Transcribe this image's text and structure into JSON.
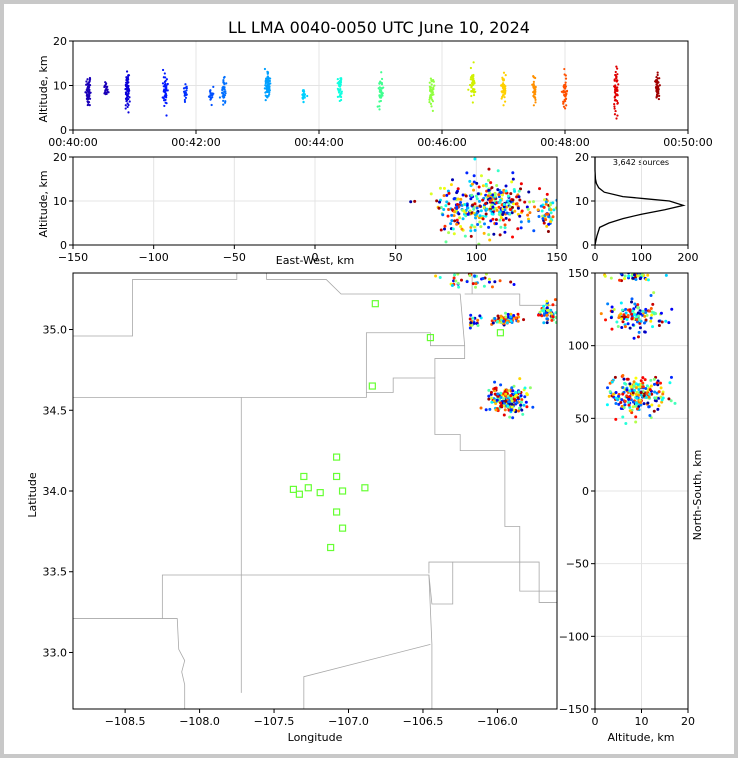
{
  "chart_data": [
    {
      "type": "scatter",
      "panel": "time-altitude",
      "title": "LL LMA 0040-0050 UTC June 10, 2024",
      "xlabel": "",
      "ylabel": "Altitude, km",
      "xlim": [
        "00:40:00",
        "00:50:00"
      ],
      "ylim": [
        0,
        20
      ],
      "xticks": [
        "00:40:00",
        "00:42:00",
        "00:44:00",
        "00:46:00",
        "00:48:00",
        "00:50:00"
      ],
      "yticks": [
        "0",
        "10",
        "20"
      ],
      "clusters": [
        {
          "t": "00:40:15",
          "alt": 9,
          "spread": 3,
          "n": 60,
          "color": "#1b00b8"
        },
        {
          "t": "00:40:32",
          "alt": 9,
          "spread": 1.5,
          "n": 20,
          "color": "#1b00b8"
        },
        {
          "t": "00:40:53",
          "alt": 9,
          "spread": 4,
          "n": 70,
          "color": "#0a00d8"
        },
        {
          "t": "00:41:30",
          "alt": 9,
          "spread": 3,
          "n": 55,
          "color": "#0018ff"
        },
        {
          "t": "00:41:50",
          "alt": 8,
          "spread": 1.5,
          "n": 20,
          "color": "#0030ff"
        },
        {
          "t": "00:42:15",
          "alt": 8,
          "spread": 1.5,
          "n": 20,
          "color": "#0050ff"
        },
        {
          "t": "00:42:27",
          "alt": 9,
          "spread": 3,
          "n": 35,
          "color": "#0070ff"
        },
        {
          "t": "00:43:10",
          "alt": 10,
          "spread": 3,
          "n": 70,
          "color": "#00a0ff"
        },
        {
          "t": "00:43:45",
          "alt": 8,
          "spread": 1.5,
          "n": 25,
          "color": "#00d0ff"
        },
        {
          "t": "00:44:20",
          "alt": 9,
          "spread": 3,
          "n": 40,
          "color": "#10ffe0"
        },
        {
          "t": "00:45:00",
          "alt": 9,
          "spread": 3,
          "n": 45,
          "color": "#40ff90"
        },
        {
          "t": "00:45:50",
          "alt": 9,
          "spread": 3,
          "n": 45,
          "color": "#90ff40"
        },
        {
          "t": "00:46:30",
          "alt": 10,
          "spread": 3,
          "n": 45,
          "color": "#d0f000"
        },
        {
          "t": "00:47:00",
          "alt": 9,
          "spread": 3,
          "n": 45,
          "color": "#ffd000"
        },
        {
          "t": "00:47:30",
          "alt": 9,
          "spread": 3,
          "n": 40,
          "color": "#ff9000"
        },
        {
          "t": "00:48:00",
          "alt": 9,
          "spread": 4,
          "n": 45,
          "color": "#ff5000"
        },
        {
          "t": "00:48:50",
          "alt": 9,
          "spread": 4,
          "n": 55,
          "color": "#e00000"
        },
        {
          "t": "00:49:30",
          "alt": 9,
          "spread": 3,
          "n": 45,
          "color": "#a00000"
        }
      ]
    },
    {
      "type": "scatter",
      "panel": "east-west-altitude",
      "xlabel": "East-West, km",
      "ylabel": "Altitude, km",
      "xlim": [
        -150,
        150
      ],
      "ylim": [
        0,
        20
      ],
      "xticks": [
        "−150",
        "−100",
        "−50",
        "0",
        "50",
        "100",
        "150"
      ],
      "yticks": [
        "0",
        "10",
        "20"
      ],
      "clusters": [
        {
          "x": 90,
          "alt": 8,
          "sx": 8,
          "sa": 3,
          "n": 120
        },
        {
          "x": 113,
          "alt": 9,
          "sx": 9,
          "sa": 3,
          "n": 220
        },
        {
          "x": 145,
          "alt": 8,
          "sx": 5,
          "sa": 2,
          "n": 60
        },
        {
          "x": 60,
          "alt": 10,
          "sx": 1,
          "sa": 0.3,
          "n": 2
        }
      ]
    },
    {
      "type": "line",
      "panel": "altitude-histogram",
      "annotation": "3,642 sources",
      "xlim": [
        0,
        200
      ],
      "ylim": [
        0,
        20
      ],
      "xticks": [
        "0",
        "100",
        "200"
      ],
      "yticks": [
        "0",
        "10",
        "20"
      ],
      "profile": [
        [
          0,
          0
        ],
        [
          4,
          2
        ],
        [
          10,
          4
        ],
        [
          30,
          5
        ],
        [
          60,
          6
        ],
        [
          100,
          7
        ],
        [
          150,
          8
        ],
        [
          190,
          9
        ],
        [
          160,
          10
        ],
        [
          110,
          10.5
        ],
        [
          60,
          11
        ],
        [
          20,
          12
        ],
        [
          8,
          13
        ],
        [
          3,
          14
        ],
        [
          1,
          15
        ],
        [
          0,
          17
        ],
        [
          0,
          20
        ]
      ]
    },
    {
      "type": "scatter",
      "panel": "plan-view",
      "xlabel": "Longitude",
      "ylabel": "Latitude",
      "xlim": [
        -108.85,
        -105.6
      ],
      "ylim": [
        32.65,
        35.35
      ],
      "xticks": [
        "−108.5",
        "−108.0",
        "−107.5",
        "−107.0",
        "−106.5",
        "−106.0"
      ],
      "yticks": [
        "33.0",
        "33.5",
        "34.0",
        "34.5",
        "35.0"
      ],
      "stations": [
        [
          -106.82,
          35.16
        ],
        [
          -106.45,
          34.95
        ],
        [
          -105.98,
          34.98
        ],
        [
          -106.84,
          34.65
        ],
        [
          -107.08,
          34.21
        ],
        [
          -107.3,
          34.09
        ],
        [
          -107.08,
          34.09
        ],
        [
          -107.27,
          34.02
        ],
        [
          -107.37,
          34.01
        ],
        [
          -107.33,
          33.98
        ],
        [
          -107.19,
          33.99
        ],
        [
          -107.04,
          34.0
        ],
        [
          -106.89,
          34.02
        ],
        [
          -107.08,
          33.87
        ],
        [
          -107.04,
          33.77
        ],
        [
          -107.12,
          33.65
        ]
      ],
      "clusters": [
        {
          "lon": -105.93,
          "lat": 34.56,
          "slon": 0.06,
          "slat": 0.04,
          "n": 200
        },
        {
          "lon": -105.95,
          "lat": 35.06,
          "slon": 0.04,
          "slat": 0.02,
          "n": 80
        },
        {
          "lon": -106.15,
          "lat": 35.05,
          "slon": 0.02,
          "slat": 0.02,
          "n": 20
        },
        {
          "lon": -105.65,
          "lat": 35.1,
          "slon": 0.04,
          "slat": 0.03,
          "n": 60
        },
        {
          "lon": -106.15,
          "lat": 35.3,
          "slon": 0.1,
          "slat": 0.03,
          "n": 40
        }
      ]
    },
    {
      "type": "scatter",
      "panel": "altitude-north-south",
      "xlabel": "Altitude, km",
      "ylabel": "North-South, km",
      "xlim": [
        0,
        20
      ],
      "ylim": [
        -150,
        150
      ],
      "xticks": [
        "0",
        "10",
        "20"
      ],
      "yticks": [
        "−150",
        "−100",
        "−50",
        "0",
        "50",
        "100",
        "150"
      ],
      "clusters": [
        {
          "alt": 9,
          "ns": 66,
          "sa": 3,
          "sn": 7,
          "n": 220
        },
        {
          "alt": 9,
          "ns": 120,
          "sa": 3,
          "sn": 5,
          "n": 120
        },
        {
          "alt": 9,
          "ns": 148,
          "sa": 3,
          "sn": 2,
          "n": 40
        }
      ]
    }
  ]
}
